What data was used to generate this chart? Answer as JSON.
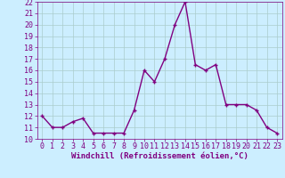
{
  "x": [
    0,
    1,
    2,
    3,
    4,
    5,
    6,
    7,
    8,
    9,
    10,
    11,
    12,
    13,
    14,
    15,
    16,
    17,
    18,
    19,
    20,
    21,
    22,
    23
  ],
  "y": [
    12,
    11,
    11,
    11.5,
    11.8,
    10.5,
    10.5,
    10.5,
    10.5,
    12.5,
    16,
    15,
    17,
    20,
    22,
    16.5,
    16,
    16.5,
    13,
    13,
    13,
    12.5,
    11,
    10.5
  ],
  "line_color": "#800080",
  "marker": "+",
  "marker_size": 3,
  "bg_color": "#cceeff",
  "grid_color": "#aacccc",
  "xlabel": "Windchill (Refroidissement éolien,°C)",
  "ylim": [
    10,
    22
  ],
  "xlim": [
    -0.5,
    23.5
  ],
  "yticks": [
    10,
    11,
    12,
    13,
    14,
    15,
    16,
    17,
    18,
    19,
    20,
    21,
    22
  ],
  "xticks": [
    0,
    1,
    2,
    3,
    4,
    5,
    6,
    7,
    8,
    9,
    10,
    11,
    12,
    13,
    14,
    15,
    16,
    17,
    18,
    19,
    20,
    21,
    22,
    23
  ],
  "line_width": 1,
  "font_size_label": 6.5,
  "font_size_tick": 6
}
